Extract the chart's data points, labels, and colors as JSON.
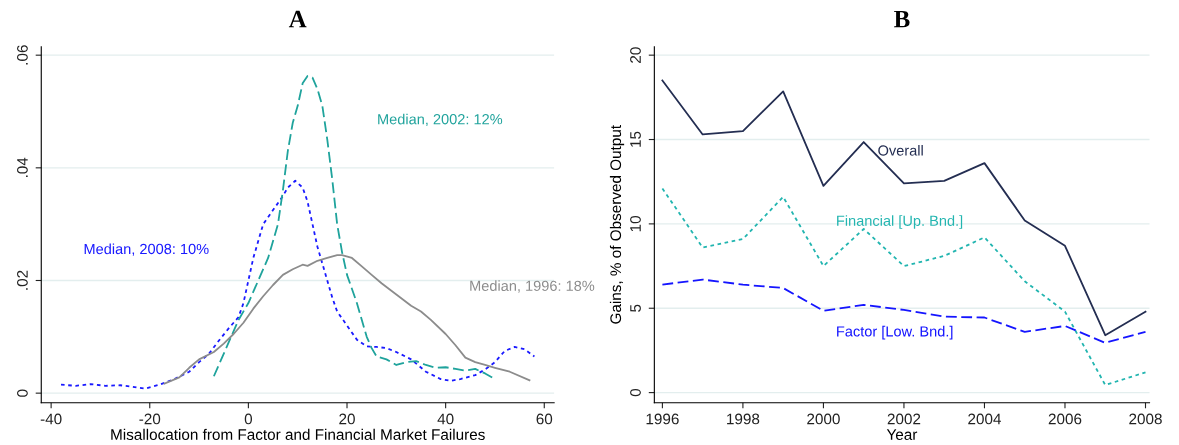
{
  "chart_data": [
    {
      "type": "line",
      "title": "A",
      "xlabel": "Misallocation from Factor and Financial Market Failures",
      "xlim": [
        -42,
        62
      ],
      "xticks": [
        -40,
        -20,
        0,
        20,
        40,
        60
      ],
      "ylim": [
        -0.0017,
        0.0615
      ],
      "yticks": [
        0,
        {
          "value": 0.02,
          "label": ".02"
        },
        {
          "value": 0.04,
          "label": ".04"
        },
        {
          "value": 0.06,
          "label": ".06"
        }
      ],
      "grid": "y",
      "legend": false,
      "series": [
        {
          "name": "Median, 2008: 10%",
          "color": "#1a1aff",
          "line_style": "dotted",
          "x": [
            -38,
            -35,
            -32,
            -29,
            -26,
            -24,
            -21,
            -18,
            -15,
            -12,
            -10,
            -8,
            -6,
            -4,
            -2,
            -1,
            0,
            1,
            2,
            3,
            5,
            7,
            8,
            9.5,
            11,
            12,
            13,
            14,
            15,
            16,
            17,
            18,
            20,
            22,
            24,
            26,
            28,
            30,
            33,
            36,
            39,
            41,
            43,
            46,
            48,
            50,
            52,
            54,
            56,
            58
          ],
          "values": [
            0.0015,
            0.0013,
            0.0016,
            0.0013,
            0.0014,
            0.0012,
            0.0008,
            0.0015,
            0.0025,
            0.0038,
            0.0055,
            0.007,
            0.0093,
            0.0115,
            0.0135,
            0.016,
            0.02,
            0.024,
            0.027,
            0.03,
            0.0325,
            0.035,
            0.0365,
            0.0377,
            0.0365,
            0.034,
            0.03,
            0.026,
            0.023,
            0.02,
            0.017,
            0.0145,
            0.012,
            0.0095,
            0.0083,
            0.0082,
            0.008,
            0.0073,
            0.006,
            0.0038,
            0.0025,
            0.0022,
            0.0025,
            0.0032,
            0.0042,
            0.0055,
            0.0075,
            0.0082,
            0.0078,
            0.0065
          ]
        },
        {
          "name": "Median, 2002: 12%",
          "color": "#1fa39c",
          "line_style": "dashed",
          "x": [
            -7,
            -4,
            -2,
            0,
            2,
            4,
            6,
            7,
            8,
            9,
            10,
            11,
            12,
            13,
            14,
            15,
            16,
            17,
            18,
            19,
            20,
            22,
            24,
            25,
            26,
            28,
            30,
            32,
            34,
            36,
            38,
            40,
            42,
            44,
            46,
            48,
            50
          ],
          "values": [
            0.003,
            0.009,
            0.013,
            0.016,
            0.02,
            0.024,
            0.03,
            0.036,
            0.043,
            0.048,
            0.051,
            0.055,
            0.0563,
            0.056,
            0.054,
            0.051,
            0.045,
            0.038,
            0.03,
            0.025,
            0.021,
            0.016,
            0.01,
            0.008,
            0.0065,
            0.006,
            0.005,
            0.0055,
            0.0057,
            0.005,
            0.0045,
            0.0046,
            0.0043,
            0.004,
            0.0043,
            0.0035,
            0.0025
          ]
        },
        {
          "name": "Median, 1996: 18%",
          "color": "#8c8c8c",
          "line_style": "solid",
          "x": [
            -17,
            -14,
            -12,
            -10,
            -7,
            -5,
            -3,
            -1,
            1,
            3,
            5,
            7,
            9,
            11,
            12,
            14,
            16,
            18,
            19,
            21,
            23,
            25,
            27,
            30,
            33,
            35,
            37,
            40,
            42,
            44,
            46,
            48,
            50,
            53,
            57
          ],
          "values": [
            0.0017,
            0.0028,
            0.0045,
            0.006,
            0.0073,
            0.0088,
            0.0105,
            0.0125,
            0.015,
            0.0172,
            0.0192,
            0.021,
            0.022,
            0.0228,
            0.0226,
            0.0235,
            0.024,
            0.0245,
            0.0245,
            0.024,
            0.0225,
            0.021,
            0.0195,
            0.0175,
            0.0155,
            0.0145,
            0.013,
            0.0105,
            0.0085,
            0.0063,
            0.0055,
            0.005,
            0.0045,
            0.0038,
            0.0023
          ]
        }
      ]
    },
    {
      "type": "line",
      "title": "B",
      "xlabel": "Year",
      "ylabel": "Gains, % of Observed Output",
      "xlim": [
        1995.8,
        2008.1
      ],
      "xticks": [
        1996,
        1998,
        2000,
        2002,
        2004,
        2006,
        2008
      ],
      "ylim": [
        -0.6,
        20.5
      ],
      "yticks": [
        0,
        5,
        10,
        15,
        20
      ],
      "grid": "y",
      "legend": false,
      "x": [
        1996,
        1997,
        1998,
        1999,
        2000,
        2001,
        2002,
        2003,
        2004,
        2005,
        2006,
        2007,
        2008
      ],
      "series": [
        {
          "name": "Overall",
          "color": "#242e52",
          "line_style": "solid",
          "values": [
            18.5,
            15.3,
            15.5,
            17.85,
            12.25,
            14.85,
            12.4,
            12.55,
            13.6,
            10.2,
            8.7,
            3.4,
            4.8
          ]
        },
        {
          "name": "Financial [Up. Bnd.]",
          "color": "#22b5b0",
          "line_style": "dotted",
          "values": [
            12.1,
            8.6,
            9.1,
            11.6,
            7.5,
            9.7,
            7.5,
            8.1,
            9.2,
            6.6,
            4.8,
            0.45,
            1.2
          ]
        },
        {
          "name": "Factor [Low. Bnd.]",
          "color": "#1515ff",
          "line_style": "dashed",
          "values": [
            6.4,
            6.7,
            6.4,
            6.2,
            4.85,
            5.2,
            4.9,
            4.5,
            4.45,
            3.6,
            3.95,
            2.95,
            3.6
          ]
        }
      ]
    }
  ]
}
